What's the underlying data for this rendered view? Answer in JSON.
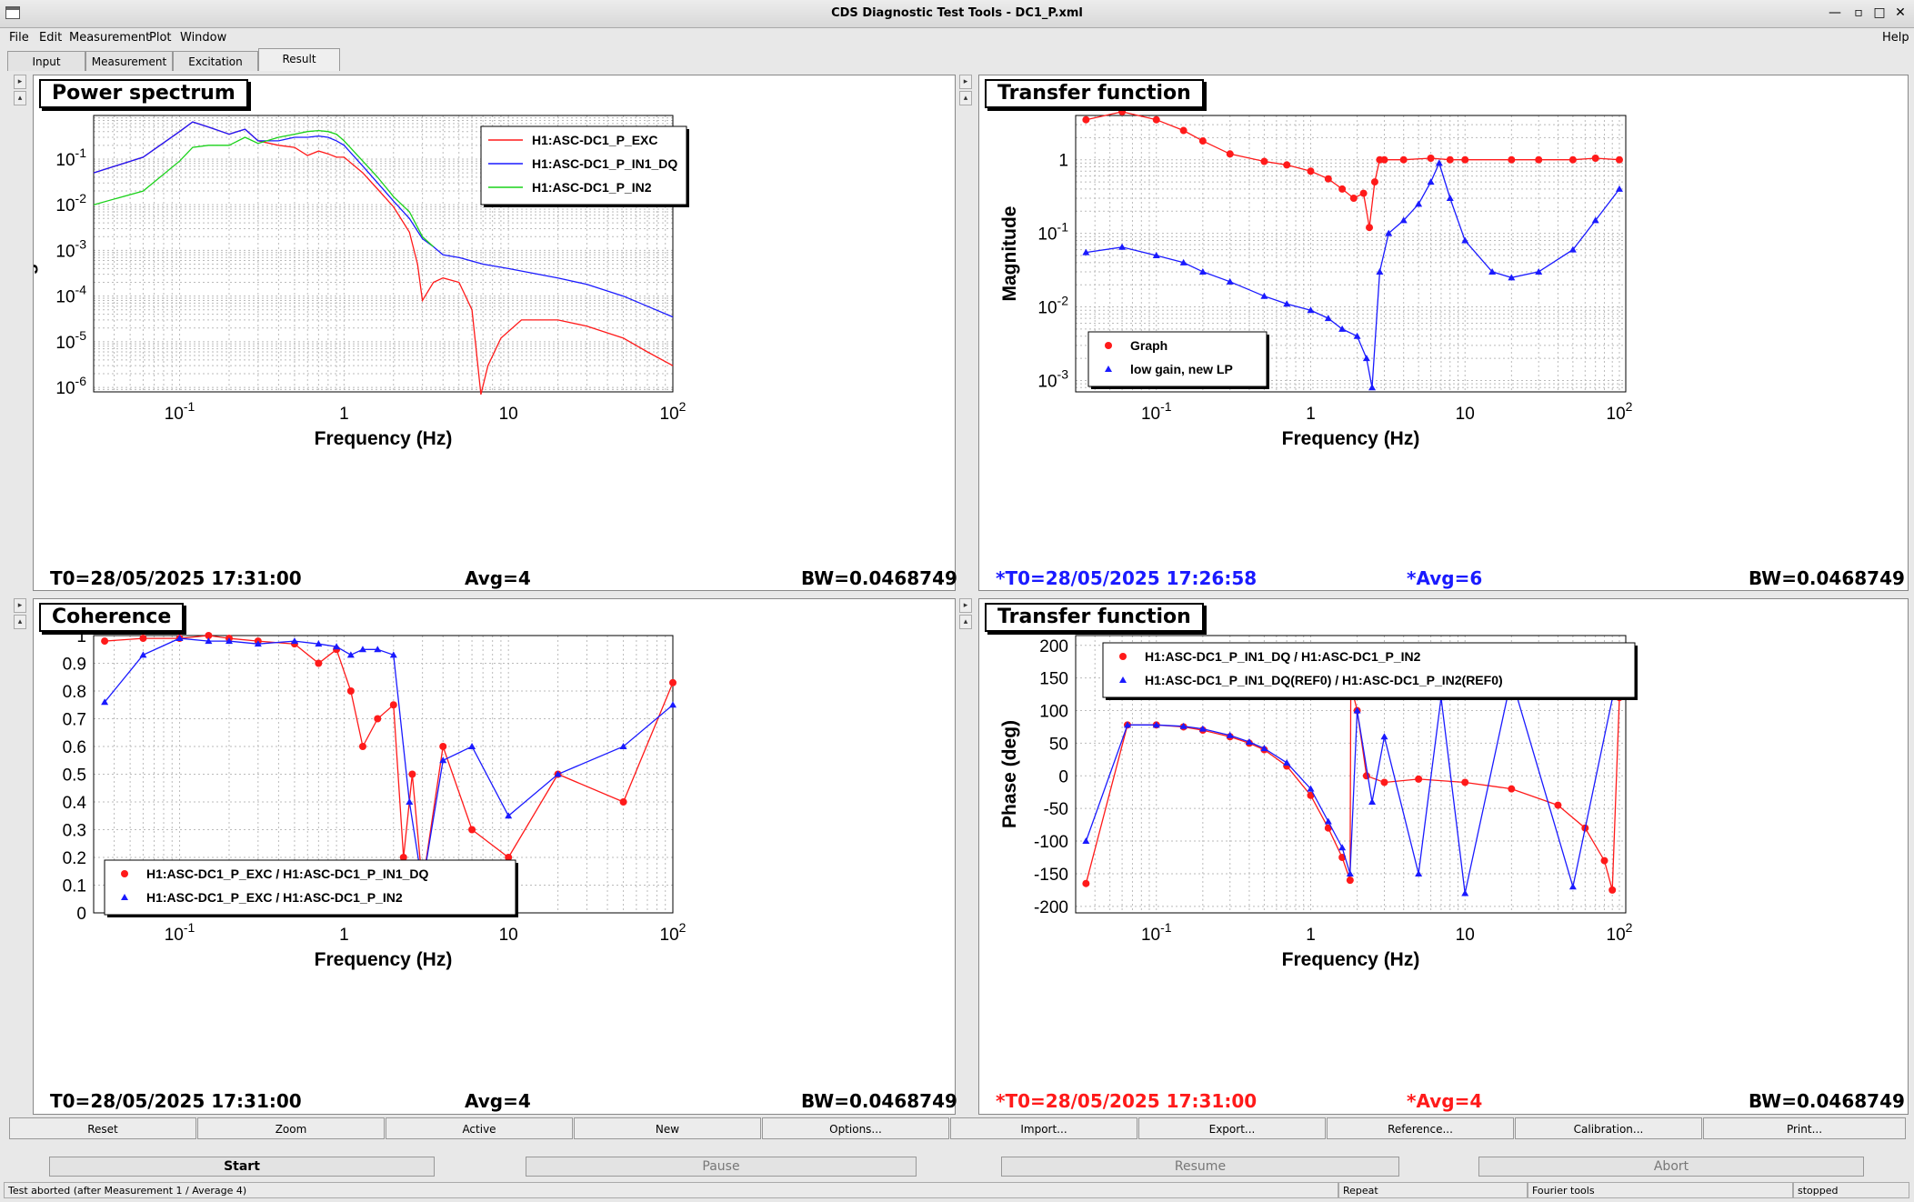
{
  "window": {
    "title": "CDS Diagnostic Test Tools - DC1_P.xml",
    "help": "Help"
  },
  "menu": [
    "File",
    "Edit",
    "Measurement",
    "Plot",
    "Window"
  ],
  "tabs": [
    "Input",
    "Measurement",
    "Excitation",
    "Result"
  ],
  "active_tab": "Result",
  "panels": [
    {
      "title": "Power spectrum",
      "ylabel": "Magnitude",
      "xlabel": "Frequency (Hz)",
      "info": {
        "t0": "T0=28/05/2025 17:31:00",
        "avg": "Avg=4",
        "bw": "BW=0.0468749",
        "color": "#000000"
      },
      "legend": [
        "H1:ASC-DC1_P_EXC",
        "H1:ASC-DC1_P_IN1_DQ",
        "H1:ASC-DC1_P_IN2"
      ]
    },
    {
      "title": "Transfer function",
      "ylabel": "Magnitude",
      "xlabel": "Frequency (Hz)",
      "info": {
        "t0": "*T0=28/05/2025 17:26:58",
        "avg": "*Avg=6",
        "bw": "BW=0.0468749",
        "color": "#1a1aff"
      },
      "legend": [
        "Graph",
        "low gain, new LP"
      ]
    },
    {
      "title": "Coherence",
      "ylabel": "Coherence",
      "xlabel": "Frequency (Hz)",
      "info": {
        "t0": "T0=28/05/2025 17:31:00",
        "avg": "Avg=4",
        "bw": "BW=0.0468749",
        "color": "#000000"
      },
      "legend": [
        "H1:ASC-DC1_P_EXC / H1:ASC-DC1_P_IN1_DQ",
        "H1:ASC-DC1_P_EXC / H1:ASC-DC1_P_IN2"
      ]
    },
    {
      "title": "Transfer function",
      "ylabel": "Phase (deg)",
      "xlabel": "Frequency (Hz)",
      "info": {
        "t0": "*T0=28/05/2025 17:31:00",
        "avg": "*Avg=4",
        "bw": "BW=0.0468749",
        "color": "#ff1a1a"
      },
      "legend": [
        "H1:ASC-DC1_P_IN1_DQ / H1:ASC-DC1_P_IN2",
        "H1:ASC-DC1_P_IN1_DQ(REF0) / H1:ASC-DC1_P_IN2(REF0)"
      ]
    }
  ],
  "buttons": [
    "Reset",
    "Zoom",
    "Active",
    "New",
    "Options...",
    "Import...",
    "Export...",
    "Reference...",
    "Calibration...",
    "Print..."
  ],
  "run_buttons": [
    "Start",
    "Pause",
    "Resume",
    "Abort"
  ],
  "status": {
    "message": "Test aborted (after Measurement 1 / Average 4)",
    "mode": "Repeat",
    "tools": "Fourier tools",
    "state": "stopped"
  },
  "colors": {
    "red": "#ff1a1a",
    "blue": "#1a1aff",
    "green": "#1ad21a"
  },
  "chart_data": [
    {
      "type": "line",
      "title": "Power spectrum",
      "xlabel": "Frequency (Hz)",
      "ylabel": "Magnitude",
      "xscale": "log",
      "yscale": "log",
      "xlim": [
        0.03,
        100
      ],
      "ylim": [
        8e-07,
        0.9
      ],
      "legend_position": "top-right",
      "xticks": [
        "10^-1",
        "1",
        "10",
        "10^2"
      ],
      "yticks": [
        "10^-1",
        "10^-2",
        "10^-3",
        "10^-4",
        "10^-5",
        "10^-6"
      ],
      "series": [
        {
          "name": "H1:ASC-DC1_P_EXC",
          "color": "#ff1a1a",
          "x": [
            0.03,
            0.06,
            0.1,
            0.12,
            0.15,
            0.2,
            0.25,
            0.3,
            0.4,
            0.5,
            0.6,
            0.7,
            0.8,
            0.9,
            1.0,
            1.3,
            1.6,
            2.0,
            2.5,
            2.8,
            3.0,
            3.5,
            4.0,
            5.0,
            6.0,
            6.8,
            7.5,
            9.0,
            12,
            20,
            30,
            50,
            70,
            100
          ],
          "y": [
            0.05,
            0.11,
            0.4,
            0.65,
            0.5,
            0.35,
            0.45,
            0.25,
            0.2,
            0.18,
            0.12,
            0.15,
            0.13,
            0.11,
            0.11,
            0.05,
            0.022,
            0.009,
            0.0025,
            0.0005,
            8e-05,
            0.0002,
            0.00025,
            0.0002,
            5e-05,
            7e-07,
            3e-06,
            1.2e-05,
            3e-05,
            3e-05,
            2.2e-05,
            1.2e-05,
            6e-06,
            3e-06
          ]
        },
        {
          "name": "H1:ASC-DC1_P_IN1_DQ",
          "color": "#1a1aff",
          "x": [
            0.03,
            0.06,
            0.1,
            0.12,
            0.15,
            0.2,
            0.25,
            0.3,
            0.4,
            0.5,
            0.6,
            0.7,
            0.8,
            0.9,
            1.0,
            1.3,
            1.6,
            2.0,
            2.5,
            3.0,
            3.5,
            4.0,
            5.0,
            7.0,
            10,
            20,
            30,
            50,
            70,
            100
          ],
          "y": [
            0.05,
            0.11,
            0.4,
            0.65,
            0.5,
            0.35,
            0.45,
            0.25,
            0.25,
            0.3,
            0.3,
            0.32,
            0.3,
            0.25,
            0.2,
            0.07,
            0.03,
            0.012,
            0.005,
            0.0018,
            0.0012,
            0.0008,
            0.0007,
            0.0005,
            0.0004,
            0.00025,
            0.00018,
            0.0001,
            6e-05,
            3.5e-05
          ]
        },
        {
          "name": "H1:ASC-DC1_P_IN2",
          "color": "#1ad21a",
          "x": [
            0.03,
            0.06,
            0.1,
            0.12,
            0.15,
            0.2,
            0.25,
            0.3,
            0.4,
            0.5,
            0.6,
            0.7,
            0.8,
            0.9,
            1.0,
            1.3,
            1.6,
            2.0,
            2.5,
            3.0,
            3.5
          ],
          "y": [
            0.01,
            0.02,
            0.09,
            0.18,
            0.2,
            0.2,
            0.3,
            0.22,
            0.3,
            0.35,
            0.4,
            0.42,
            0.4,
            0.35,
            0.25,
            0.09,
            0.04,
            0.015,
            0.007,
            0.002,
            0.0012
          ]
        }
      ]
    },
    {
      "type": "scatter",
      "title": "Transfer function",
      "xlabel": "Frequency (Hz)",
      "ylabel": "Magnitude",
      "xscale": "log",
      "yscale": "log",
      "xlim": [
        0.03,
        110
      ],
      "ylim": [
        0.0007,
        4
      ],
      "legend_position": "bottom-left",
      "xticks": [
        "10^-1",
        "1",
        "10",
        "10^2"
      ],
      "yticks": [
        "1",
        "10^-1",
        "10^-2",
        "10^-3"
      ],
      "series": [
        {
          "name": "Graph",
          "color": "#ff1a1a",
          "x": [
            0.035,
            0.06,
            0.1,
            0.15,
            0.2,
            0.3,
            0.5,
            0.7,
            1.0,
            1.3,
            1.6,
            1.9,
            2.2,
            2.4,
            2.6,
            2.8,
            3,
            4,
            6,
            8,
            10,
            20,
            30,
            50,
            70,
            100
          ],
          "y": [
            3.5,
            4.5,
            3.5,
            2.5,
            1.8,
            1.2,
            0.95,
            0.85,
            0.7,
            0.55,
            0.4,
            0.3,
            0.35,
            0.12,
            0.5,
            1.0,
            1.0,
            1.0,
            1.05,
            1.0,
            1.0,
            1.0,
            1.0,
            1.0,
            1.05,
            1.0
          ]
        },
        {
          "name": "low gain, new LP",
          "color": "#1a1aff",
          "x": [
            0.035,
            0.06,
            0.1,
            0.15,
            0.2,
            0.3,
            0.5,
            0.7,
            1.0,
            1.3,
            1.6,
            2.0,
            2.3,
            2.5,
            2.8,
            3.2,
            4,
            5,
            6,
            6.8,
            8,
            10,
            15,
            20,
            30,
            50,
            70,
            100
          ],
          "y": [
            0.055,
            0.065,
            0.05,
            0.04,
            0.03,
            0.022,
            0.014,
            0.011,
            0.009,
            0.007,
            0.005,
            0.004,
            0.002,
            0.0008,
            0.03,
            0.1,
            0.15,
            0.25,
            0.5,
            0.9,
            0.3,
            0.08,
            0.03,
            0.025,
            0.03,
            0.06,
            0.15,
            0.4
          ]
        }
      ]
    },
    {
      "type": "scatter",
      "title": "Coherence",
      "xlabel": "Frequency (Hz)",
      "ylabel": "Coherence",
      "xscale": "log",
      "xlim": [
        0.03,
        100
      ],
      "ylim": [
        0,
        1
      ],
      "legend_position": "bottom-left",
      "xticks": [
        "10^-1",
        "1",
        "10",
        "10^2"
      ],
      "yticks": [
        "0",
        "0.1",
        "0.2",
        "0.3",
        "0.4",
        "0.5",
        "0.6",
        "0.7",
        "0.8",
        "0.9",
        "1"
      ],
      "series": [
        {
          "name": "H1:ASC-DC1_P_EXC / H1:ASC-DC1_P_IN1_DQ",
          "color": "#ff1a1a",
          "x": [
            0.035,
            0.06,
            0.1,
            0.15,
            0.2,
            0.3,
            0.5,
            0.7,
            0.9,
            1.1,
            1.3,
            1.6,
            2.0,
            2.3,
            2.6,
            3,
            4,
            6,
            10,
            20,
            50,
            100
          ],
          "y": [
            0.98,
            0.99,
            0.99,
            1.0,
            0.99,
            0.98,
            0.97,
            0.9,
            0.95,
            0.8,
            0.6,
            0.7,
            0.75,
            0.2,
            0.5,
            0.1,
            0.6,
            0.3,
            0.2,
            0.5,
            0.4,
            0.83
          ]
        },
        {
          "name": "H1:ASC-DC1_P_EXC / H1:ASC-DC1_P_IN2",
          "color": "#1a1aff",
          "x": [
            0.035,
            0.06,
            0.1,
            0.15,
            0.2,
            0.3,
            0.5,
            0.7,
            0.9,
            1.1,
            1.3,
            1.6,
            2.0,
            2.5,
            3,
            4,
            6,
            10,
            20,
            50,
            100
          ],
          "y": [
            0.76,
            0.93,
            0.99,
            0.98,
            0.98,
            0.97,
            0.98,
            0.97,
            0.96,
            0.93,
            0.95,
            0.95,
            0.93,
            0.4,
            0.1,
            0.55,
            0.6,
            0.35,
            0.5,
            0.6,
            0.75
          ]
        }
      ]
    },
    {
      "type": "scatter",
      "title": "Transfer function",
      "xlabel": "Frequency (Hz)",
      "ylabel": "Phase (deg)",
      "xscale": "log",
      "xlim": [
        0.03,
        110
      ],
      "ylim": [
        -210,
        215
      ],
      "legend_position": "top-right",
      "xticks": [
        "10^-1",
        "1",
        "10",
        "10^2"
      ],
      "yticks": [
        "200",
        "150",
        "100",
        "50",
        "0",
        "-50",
        "-100",
        "-150",
        "-200"
      ],
      "series": [
        {
          "name": "H1:ASC-DC1_P_IN1_DQ / H1:ASC-DC1_P_IN2",
          "color": "#ff1a1a",
          "x": [
            0.035,
            0.065,
            0.1,
            0.15,
            0.2,
            0.3,
            0.4,
            0.5,
            0.7,
            1.0,
            1.3,
            1.6,
            1.8,
            1.82,
            2.0,
            2.3,
            3,
            5,
            10,
            20,
            40,
            60,
            80,
            90,
            100
          ],
          "y": [
            -165,
            78,
            78,
            75,
            70,
            60,
            50,
            40,
            15,
            -30,
            -80,
            -125,
            -160,
            140,
            100,
            0,
            -10,
            -5,
            -10,
            -20,
            -45,
            -80,
            -130,
            -175,
            120
          ]
        },
        {
          "name": "H1:ASC-DC1_P_IN1_DQ(REF0) / H1:ASC-DC1_P_IN2(REF0)",
          "color": "#1a1aff",
          "x": [
            0.035,
            0.065,
            0.1,
            0.15,
            0.2,
            0.3,
            0.4,
            0.5,
            0.7,
            1.0,
            1.3,
            1.6,
            1.8,
            2.0,
            2.5,
            3,
            5,
            7,
            10,
            20,
            50,
            100
          ],
          "y": [
            -100,
            78,
            78,
            76,
            72,
            62,
            52,
            42,
            20,
            -20,
            -70,
            -110,
            -150,
            100,
            -40,
            60,
            -150,
            120,
            -180,
            150,
            -170,
            170
          ]
        }
      ]
    }
  ]
}
